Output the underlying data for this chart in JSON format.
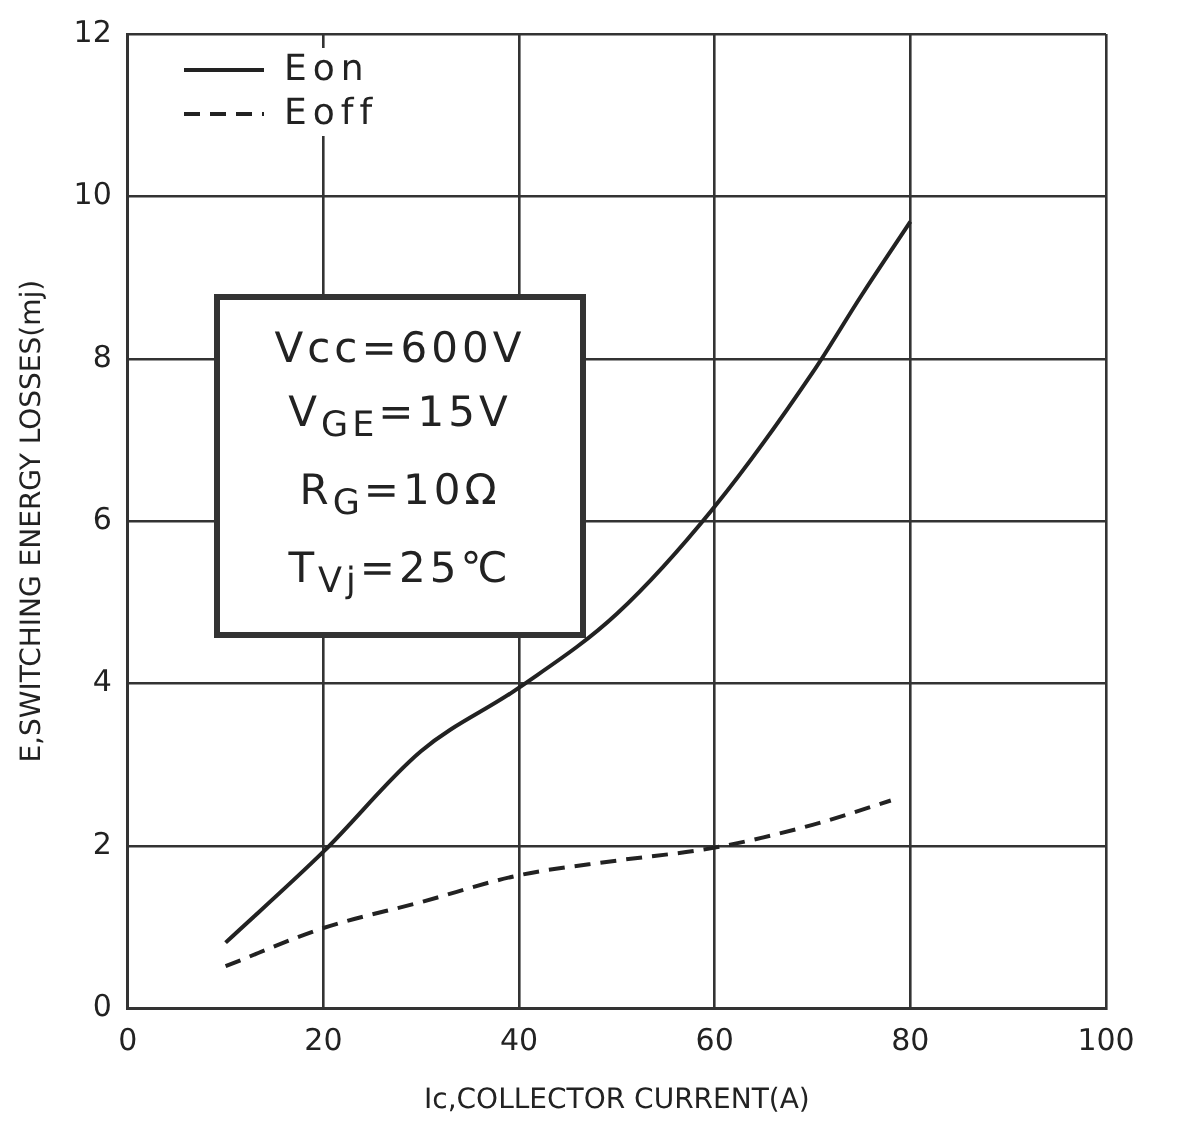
{
  "chart_data": {
    "type": "line",
    "xlabel": "Ic,COLLECTOR CURRENT(A)",
    "ylabel": "E,SWITCHING ENERGY LOSSES(mj)",
    "xlim": [
      0,
      100
    ],
    "xticks": [
      0,
      20,
      40,
      60,
      80,
      100
    ],
    "ylim": [
      0,
      12
    ],
    "yticks": [
      0,
      2,
      4,
      6,
      8,
      10,
      12
    ],
    "grid": true,
    "legend": "top left",
    "marker": "none",
    "annotations": [
      "Vcc=600V",
      "V$_{GE}$=15V",
      "R$_{G}$=10Ω",
      "T$_{Vj}$=25℃"
    ],
    "series": [
      {
        "name": "Eon",
        "color": "#222222",
        "line_style": "solid",
        "x": [
          10,
          20,
          30,
          40,
          50,
          60,
          70,
          75,
          80
        ],
        "values": [
          0.81,
          1.93,
          3.17,
          3.95,
          4.86,
          6.18,
          7.83,
          8.78,
          9.69
        ]
      },
      {
        "name": "Eoff",
        "color": "#222222",
        "line_style": "dashed",
        "x": [
          10,
          20,
          30,
          40,
          50,
          60,
          70,
          78
        ],
        "values": [
          0.52,
          0.99,
          1.31,
          1.64,
          1.82,
          1.98,
          2.26,
          2.56
        ]
      }
    ]
  }
}
